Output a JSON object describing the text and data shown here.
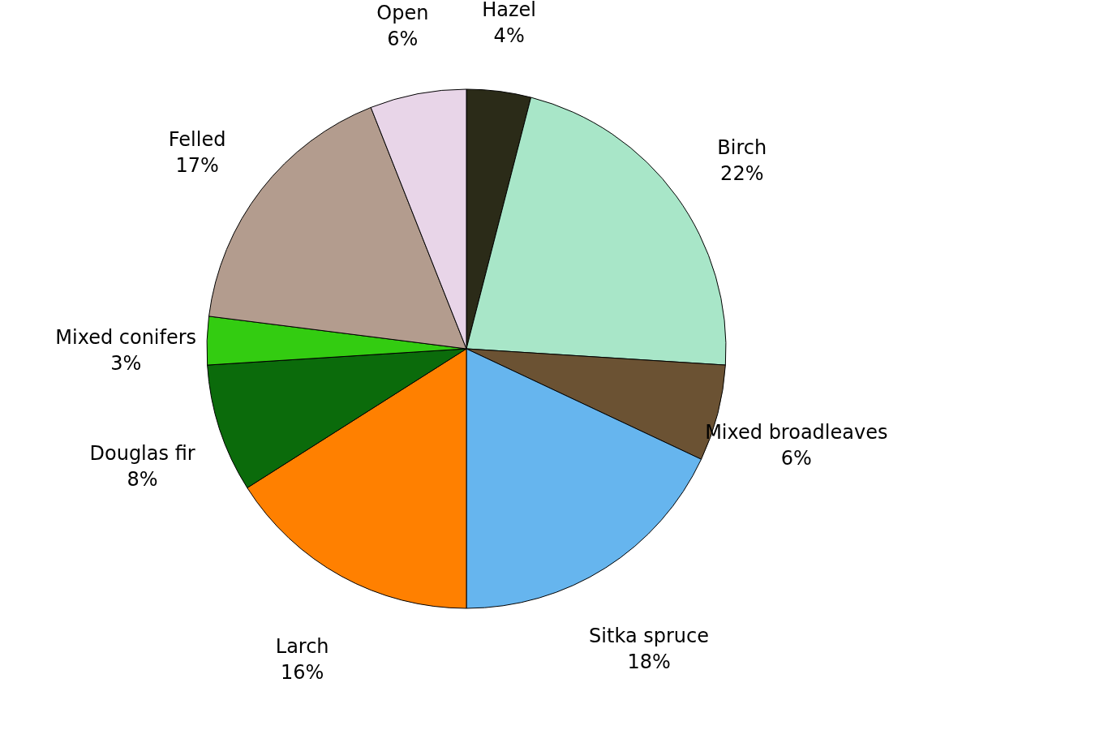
{
  "chart_data": {
    "type": "pie",
    "categories": [
      "Hazel",
      "Birch",
      "Mixed broadleaves",
      "Sitka spruce",
      "Larch",
      "Douglas fir",
      "Mixed conifers",
      "Felled",
      "Open"
    ],
    "values": [
      4,
      22,
      6,
      18,
      16,
      8,
      3,
      17,
      6
    ],
    "value_labels": [
      "4%",
      "22%",
      "6%",
      "18%",
      "16%",
      "8%",
      "3%",
      "17%",
      "6%"
    ],
    "colors": [
      "#2b2b18",
      "#a8e6c8",
      "#6b5233",
      "#66b5ee",
      "#ff8000",
      "#0b6b0b",
      "#33cc11",
      "#b39c8e",
      "#e8d5e8"
    ],
    "legend": false
  }
}
